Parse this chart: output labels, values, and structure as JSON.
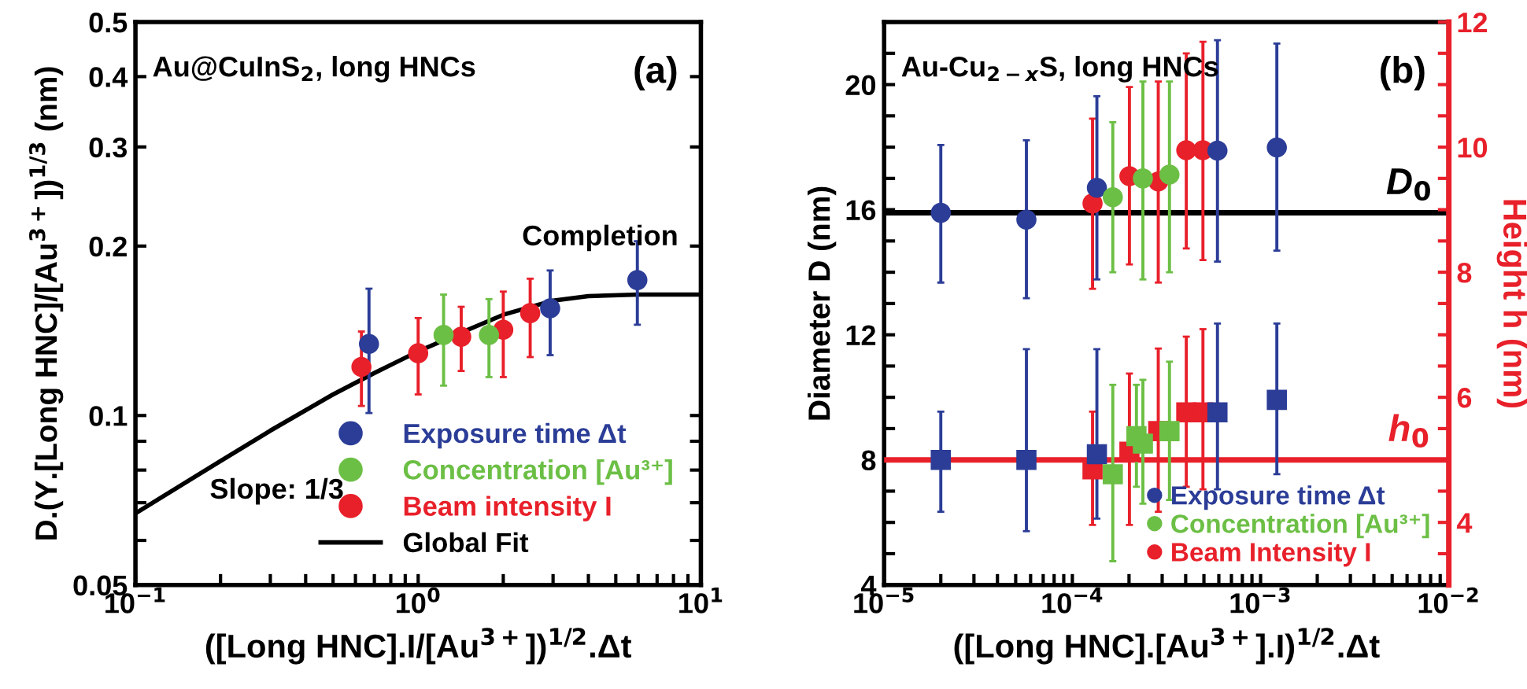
{
  "chart_data": [
    {
      "type": "scatter",
      "xlabel": "([Long HNC].I/[Au$^{3+}$])$^{1/2}$.Δt",
      "ylabel": "D.(Y.[Long HNC]/[Au$^{3+}$])$^{1/3}$ (nm)",
      "log": "xy",
      "grid": false,
      "legend": "bottom right",
      "marker": "circle",
      "xlim": [
        0.1,
        10
      ],
      "ylim": [
        0.05,
        0.5
      ],
      "xticks": [
        {
          "value": 0.1,
          "label": "10$^{−1}$"
        },
        {
          "value": 0.2,
          "label": null
        },
        {
          "value": 0.3,
          "label": null
        },
        {
          "value": 0.4,
          "label": null
        },
        {
          "value": 0.5,
          "label": null
        },
        {
          "value": 0.6,
          "label": null
        },
        {
          "value": 0.7,
          "label": null
        },
        {
          "value": 0.8,
          "label": null
        },
        {
          "value": 0.9,
          "label": null
        },
        {
          "value": 1,
          "label": "10$^{0}$"
        },
        {
          "value": 2,
          "label": null
        },
        {
          "value": 3,
          "label": null
        },
        {
          "value": 4,
          "label": null
        },
        {
          "value": 5,
          "label": null
        },
        {
          "value": 6,
          "label": null
        },
        {
          "value": 7,
          "label": null
        },
        {
          "value": 8,
          "label": null
        },
        {
          "value": 9,
          "label": null
        },
        {
          "value": 10,
          "label": "10$^{1}$"
        }
      ],
      "yticks": [
        0.05,
        {
          "value": 0.06,
          "label": null
        },
        {
          "value": 0.07,
          "label": null
        },
        {
          "value": 0.08,
          "label": null
        },
        {
          "value": 0.09,
          "label": null
        },
        0.1,
        0.2,
        0.3,
        0.4,
        0.5
      ],
      "annotations": [
        "Au@CuInS$_{2}$, long HNCs",
        "(a)",
        "Completion",
        "Slope: 1/3"
      ],
      "series": [
        {
          "name": "Exposure time Δt",
          "color": "#2b3d97",
          "x": [
            0.67,
            2.93,
            5.96
          ],
          "values": [
            0.134,
            0.155,
            0.174
          ],
          "errors": [
            [
              0.101,
              0.168
            ],
            [
              0.128,
              0.181
            ],
            [
              0.145,
              0.204
            ]
          ]
        },
        {
          "name": "Concentration [Au³⁺]",
          "color": "#6cbf45",
          "x": [
            1.23,
            1.78
          ],
          "values": [
            0.139,
            0.139
          ],
          "errors": [
            [
              0.113,
              0.164
            ],
            [
              0.117,
              0.161
            ]
          ]
        },
        {
          "name": "Beam intensity I",
          "color": "#e8202a",
          "x": [
            0.63,
            1.0,
            1.42,
            2.0,
            2.49
          ],
          "values": [
            0.122,
            0.129,
            0.138,
            0.142,
            0.152
          ],
          "errors": [
            [
              0.104,
              0.141
            ],
            [
              0.109,
              0.149
            ],
            [
              0.12,
              0.156
            ],
            [
              0.117,
              0.166
            ],
            [
              0.127,
              0.175
            ]
          ]
        },
        {
          "name": "Global Fit",
          "type": "line",
          "color": "#000000",
          "marker": "none",
          "line_style": "solid",
          "x": [
            0.1,
            0.2,
            0.3,
            0.5,
            0.7,
            1.0,
            1.5,
            2,
            3,
            4,
            6,
            10
          ],
          "values": [
            0.067,
            0.083,
            0.094,
            0.109,
            0.119,
            0.13,
            0.142,
            0.151,
            0.16,
            0.163,
            0.164,
            0.164
          ]
        }
      ]
    },
    {
      "type": "scatter",
      "xlabel": "([Long HNC].[Au$^{3+}$].I)$^{1/2}$.Δt",
      "ylabel": "Diameter D (nm)",
      "y2label": "Height h (nm)",
      "log": "x",
      "grid": false,
      "legend": "bottom right",
      "xlim": [
        1e-05,
        0.01
      ],
      "ylim": [
        4,
        22
      ],
      "y2lim": [
        3,
        12
      ],
      "xticks": [
        {
          "value": 1e-05,
          "label": "10$^{−5}$"
        },
        {
          "value": 2e-05,
          "label": null
        },
        {
          "value": 3e-05,
          "label": null
        },
        {
          "value": 4e-05,
          "label": null
        },
        {
          "value": 5e-05,
          "label": null
        },
        {
          "value": 6e-05,
          "label": null
        },
        {
          "value": 7e-05,
          "label": null
        },
        {
          "value": 8e-05,
          "label": null
        },
        {
          "value": 9e-05,
          "label": null
        },
        {
          "value": 0.0001,
          "label": "10$^{−4}$"
        },
        {
          "value": 0.0002,
          "label": null
        },
        {
          "value": 0.0003,
          "label": null
        },
        {
          "value": 0.0004,
          "label": null
        },
        {
          "value": 0.0005,
          "label": null
        },
        {
          "value": 0.0006,
          "label": null
        },
        {
          "value": 0.0007,
          "label": null
        },
        {
          "value": 0.0008,
          "label": null
        },
        {
          "value": 0.0009,
          "label": null
        },
        {
          "value": 0.001,
          "label": "10$^{−3}$"
        },
        {
          "value": 0.002,
          "label": null
        },
        {
          "value": 0.003,
          "label": null
        },
        {
          "value": 0.004,
          "label": null
        },
        {
          "value": 0.005,
          "label": null
        },
        {
          "value": 0.006,
          "label": null
        },
        {
          "value": 0.007,
          "label": null
        },
        {
          "value": 0.008,
          "label": null
        },
        {
          "value": 0.009,
          "label": null
        },
        {
          "value": 0.01,
          "label": "10$^{−2}$"
        }
      ],
      "yticks": [
        4,
        {
          "value": 5,
          "label": null
        },
        {
          "value": 6,
          "label": null
        },
        {
          "value": 7,
          "label": null
        },
        8,
        {
          "value": 9,
          "label": null
        },
        {
          "value": 10,
          "label": null
        },
        {
          "value": 11,
          "label": null
        },
        12,
        {
          "value": 13,
          "label": null
        },
        {
          "value": 14,
          "label": null
        },
        {
          "value": 15,
          "label": null
        },
        16,
        {
          "value": 17,
          "label": null
        },
        {
          "value": 18,
          "label": null
        },
        {
          "value": 19,
          "label": null
        },
        20,
        {
          "value": 21,
          "label": null
        },
        {
          "value": 22,
          "label": null
        }
      ],
      "y2ticks": [
        {
          "value": 3.5,
          "label": null
        },
        4,
        {
          "value": 4.5,
          "label": null
        },
        {
          "value": 5,
          "label": null
        },
        {
          "value": 5.5,
          "label": null
        },
        6,
        {
          "value": 6.5,
          "label": null
        },
        {
          "value": 7,
          "label": null
        },
        {
          "value": 7.5,
          "label": null
        },
        8,
        {
          "value": 8.5,
          "label": null
        },
        {
          "value": 9,
          "label": null
        },
        {
          "value": 9.5,
          "label": null
        },
        10,
        {
          "value": 10.5,
          "label": null
        },
        {
          "value": 11,
          "label": null
        },
        {
          "value": 11.5,
          "label": null
        },
        12
      ],
      "annotations": [
        "Au-Cu$_{2−x}$S, long HNCs",
        "(b)"
      ],
      "ref_lines": [
        {
          "axis": "y",
          "value": 15.9,
          "label": "D$_{0}$",
          "color": "#000000"
        },
        {
          "axis": "y2",
          "value": 5,
          "label": "h$_{0}$",
          "color": "#e8202a"
        }
      ],
      "series": [
        {
          "name": "Exposure time Δt",
          "color": "#2b3d97",
          "marker": "circle",
          "x": [
            2e-05,
            5.7e-05,
            0.000135,
            0.00059,
            0.00122
          ],
          "values": [
            15.9,
            15.68,
            16.7,
            17.89,
            17.99
          ],
          "errors": [
            [
              13.67,
              18.07
            ],
            [
              13.17,
              18.22
            ],
            [
              13.77,
              19.63
            ],
            [
              14.34,
              21.42
            ],
            [
              14.69,
              21.31
            ]
          ]
        },
        {
          "name": "Concentration [Au³⁺]",
          "color": "#6cbf45",
          "marker": "circle",
          "x": [
            0.000164,
            0.000237,
            0.000328
          ],
          "values": [
            16.4,
            17.0,
            17.12
          ],
          "errors": [
            [
              14.0,
              18.8
            ],
            [
              13.77,
              20.1
            ],
            [
              14.0,
              20.1
            ]
          ]
        },
        {
          "name": "Beam Intensity I",
          "color": "#e8202a",
          "marker": "circle",
          "x": [
            0.000128,
            0.000201,
            0.000286,
            0.000403,
            0.000494
          ],
          "values": [
            16.2,
            17.07,
            16.9,
            17.9,
            17.9
          ],
          "errors": [
            [
              13.47,
              18.91
            ],
            [
              14.25,
              19.92
            ],
            [
              13.67,
              20.1
            ],
            [
              14.76,
              21.0
            ],
            [
              14.39,
              21.37
            ]
          ]
        },
        {
          "color": "#2b3d97",
          "marker": "square",
          "axis": "y2",
          "x": [
            2e-05,
            5.7e-05,
            0.000135,
            0.00059,
            0.00122
          ],
          "values": [
            5.0,
            5.0,
            5.09,
            5.76,
            5.96
          ],
          "errors": [
            [
              4.17,
              5.77
            ],
            [
              3.86,
              6.77
            ],
            [
              4.06,
              6.77
            ],
            [
              4.53,
              7.18
            ],
            [
              4.77,
              7.18
            ]
          ]
        },
        {
          "color": "#6cbf45",
          "marker": "square",
          "axis": "y2",
          "x": [
            0.000164,
            0.000219,
            0.000237,
            0.000328
          ],
          "values": [
            4.77,
            5.38,
            5.26,
            5.46
          ],
          "errors": [
            [
              3.38,
              6.2
            ],
            [
              4.57,
              6.2
            ],
            [
              4.3,
              6.28
            ],
            [
              4.36,
              6.57
            ]
          ]
        },
        {
          "color": "#e8202a",
          "marker": "square",
          "axis": "y2",
          "x": [
            0.000128,
            0.000201,
            0.000286,
            0.000403,
            0.000494
          ],
          "values": [
            4.85,
            5.13,
            5.46,
            5.76,
            5.76
          ],
          "errors": [
            [
              3.96,
              5.77
            ],
            [
              3.96,
              6.38
            ],
            [
              4.17,
              6.78
            ],
            [
              4.57,
              6.97
            ],
            [
              4.53,
              7.09
            ]
          ]
        }
      ]
    }
  ]
}
